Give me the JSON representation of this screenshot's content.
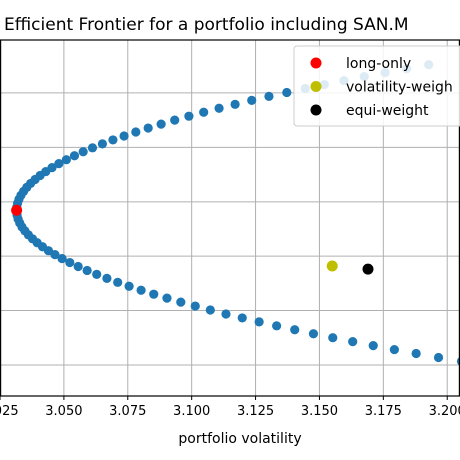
{
  "chart_data": {
    "type": "scatter",
    "title": "Efficient Frontier for a portfolio including SAN.M",
    "xlabel": "portfolio volatility",
    "ylabel": "",
    "xlim": [
      3.025,
      3.205
    ],
    "ylim": [
      -0.1,
      1.05
    ],
    "x_ticks": [
      3.025,
      3.05,
      3.075,
      3.1,
      3.125,
      3.15,
      3.175,
      3.2
    ],
    "x_tick_labels": [
      "3.025",
      "3.050",
      "3.075",
      "3.100",
      "3.125",
      "3.150",
      "3.175",
      "3.200"
    ],
    "y_ticks": [
      0.0,
      0.176,
      0.352,
      0.527,
      0.703,
      0.879
    ],
    "grid": true,
    "legend_placement": "top-right",
    "frontier": {
      "name": "",
      "color": "#1f77b4",
      "v0": 3.0315,
      "r0": 0.5,
      "k": 0.73,
      "r_start": -0.065,
      "r_end": 0.97,
      "n_points": 82
    },
    "series": [
      {
        "name": "long-only",
        "color": "#ff0000",
        "x": [
          3.0315
        ],
        "y": [
          0.5
        ]
      },
      {
        "name": "volatility-weigh",
        "color": "#bfbf00",
        "x": [
          3.155
        ],
        "y": [
          0.32
        ]
      },
      {
        "name": "equi-weight",
        "color": "#000000",
        "x": [
          3.169
        ],
        "y": [
          0.31
        ]
      }
    ]
  }
}
